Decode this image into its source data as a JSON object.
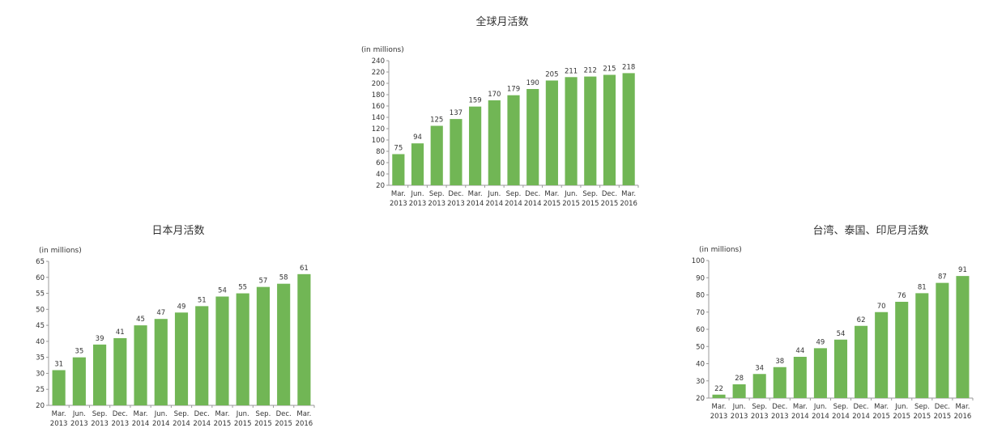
{
  "chart_data": [
    {
      "type": "bar",
      "title": "全球月活数",
      "unit_label": "(in millions)",
      "categories": [
        [
          "Mar.",
          "2013"
        ],
        [
          "Jun.",
          "2013"
        ],
        [
          "Sep.",
          "2013"
        ],
        [
          "Dec.",
          "2013"
        ],
        [
          "Mar.",
          "2014"
        ],
        [
          "Jun.",
          "2014"
        ],
        [
          "Sep.",
          "2014"
        ],
        [
          "Dec.",
          "2014"
        ],
        [
          "Mar.",
          "2015"
        ],
        [
          "Jun.",
          "2015"
        ],
        [
          "Sep.",
          "2015"
        ],
        [
          "Dec.",
          "2015"
        ],
        [
          "Mar.",
          "2016"
        ]
      ],
      "values": [
        75,
        94,
        125,
        137,
        159,
        170,
        179,
        190,
        205,
        211,
        212,
        215,
        218
      ],
      "ylim": [
        20,
        240
      ],
      "yticks": [
        20,
        40,
        60,
        80,
        100,
        120,
        140,
        160,
        180,
        200,
        220,
        240
      ],
      "bar_color": "#71b655",
      "grid": false
    },
    {
      "type": "bar",
      "title": "日本月活数",
      "unit_label": "(in millions)",
      "categories": [
        [
          "Mar.",
          "2013"
        ],
        [
          "Jun.",
          "2013"
        ],
        [
          "Sep.",
          "2013"
        ],
        [
          "Dec.",
          "2013"
        ],
        [
          "Mar.",
          "2014"
        ],
        [
          "Jun.",
          "2014"
        ],
        [
          "Sep.",
          "2014"
        ],
        [
          "Dec.",
          "2014"
        ],
        [
          "Mar.",
          "2015"
        ],
        [
          "Jun.",
          "2015"
        ],
        [
          "Sep.",
          "2015"
        ],
        [
          "Dec.",
          "2015"
        ],
        [
          "Mar.",
          "2016"
        ]
      ],
      "values": [
        31,
        35,
        39,
        41,
        45,
        47,
        49,
        51,
        54,
        55,
        57,
        58,
        61
      ],
      "ylim": [
        20,
        65
      ],
      "yticks": [
        20,
        25,
        30,
        35,
        40,
        45,
        50,
        55,
        60,
        65
      ],
      "bar_color": "#71b655",
      "grid": false
    },
    {
      "type": "bar",
      "title": "台湾、泰国、印尼月活数",
      "unit_label": "(in millions)",
      "categories": [
        [
          "Mar.",
          "2013"
        ],
        [
          "Jun.",
          "2013"
        ],
        [
          "Sep.",
          "2013"
        ],
        [
          "Dec.",
          "2013"
        ],
        [
          "Mar.",
          "2014"
        ],
        [
          "Jun.",
          "2014"
        ],
        [
          "Sep.",
          "2014"
        ],
        [
          "Dec.",
          "2014"
        ],
        [
          "Mar.",
          "2015"
        ],
        [
          "Jun.",
          "2015"
        ],
        [
          "Sep.",
          "2015"
        ],
        [
          "Dec.",
          "2015"
        ],
        [
          "Mar.",
          "2016"
        ]
      ],
      "values": [
        22,
        28,
        34,
        38,
        44,
        49,
        54,
        62,
        70,
        76,
        81,
        87,
        91
      ],
      "ylim": [
        20,
        100
      ],
      "yticks": [
        20,
        30,
        40,
        50,
        60,
        70,
        80,
        90,
        100
      ],
      "bar_color": "#71b655",
      "grid": false
    }
  ]
}
